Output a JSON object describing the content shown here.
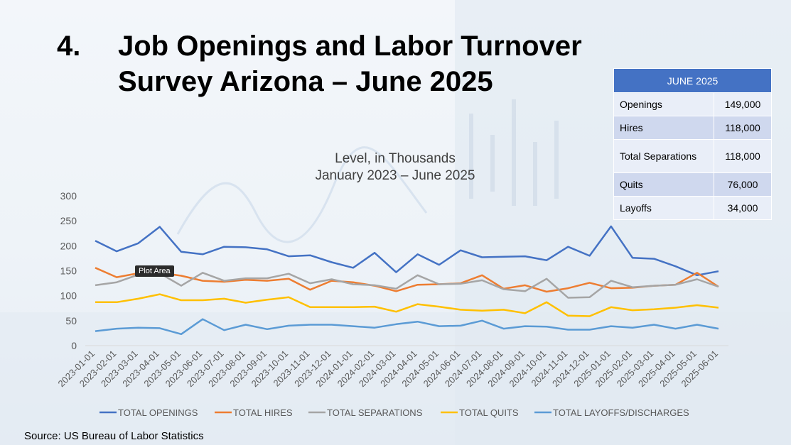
{
  "title": {
    "number": "4.",
    "text": "Job Openings and Labor Turnover\nSurvey Arizona – June 2025"
  },
  "summary_table": {
    "header": "JUNE 2025",
    "rows": [
      {
        "label": "Openings",
        "value": "149,000"
      },
      {
        "label": "Hires",
        "value": "118,000"
      },
      {
        "label": "Total Separations",
        "value": "118,000"
      },
      {
        "label": "Quits",
        "value": "76,000"
      },
      {
        "label": "Layoffs",
        "value": "34,000"
      }
    ]
  },
  "tooltip": "Plot Area",
  "source": "Source: US Bureau of Labor Statistics",
  "chart_data": {
    "type": "line",
    "title": "Level, in Thousands",
    "subtitle": "January 2023 – June 2025",
    "xlabel": "",
    "ylabel": "",
    "ylim": [
      0,
      300
    ],
    "yticks": [
      0,
      50,
      100,
      150,
      200,
      250,
      300
    ],
    "grid": false,
    "legend_position": "bottom",
    "categories": [
      "2023-01-01",
      "2023-02-01",
      "2023-03-01",
      "2023-04-01",
      "2023-05-01",
      "2023-06-01",
      "2023-07-01",
      "2023-08-01",
      "2023-09-01",
      "2023-10-01",
      "2023-11-01",
      "2023-12-01",
      "2024-01-01",
      "2024-02-01",
      "2024-03-01",
      "2024-04-01",
      "2024-05-01",
      "2024-06-01",
      "2024-07-01",
      "2024-08-01",
      "2024-09-01",
      "2024-10-01",
      "2024-11-01",
      "2024-12-01",
      "2025-01-01",
      "2025-02-01",
      "2025-03-01",
      "2025-04-01",
      "2025-05-01",
      "2025-06-01"
    ],
    "series": [
      {
        "name": "TOTAL OPENINGS",
        "color": "#4472c4",
        "values": [
          210,
          189,
          205,
          238,
          188,
          183,
          198,
          197,
          193,
          179,
          181,
          167,
          156,
          186,
          147,
          183,
          162,
          191,
          177,
          178,
          179,
          171,
          198,
          180,
          239,
          176,
          174,
          159,
          141,
          149
        ]
      },
      {
        "name": "TOTAL HIRES",
        "color": "#ed7d31",
        "values": [
          156,
          137,
          145,
          146,
          140,
          130,
          128,
          132,
          130,
          134,
          112,
          130,
          127,
          120,
          109,
          122,
          123,
          125,
          141,
          114,
          121,
          108,
          115,
          126,
          115,
          116,
          120,
          122,
          146,
          118
        ]
      },
      {
        "name": "TOTAL SEPARATIONS",
        "color": "#a5a5a5",
        "values": [
          121,
          127,
          142,
          145,
          120,
          146,
          130,
          135,
          135,
          144,
          125,
          133,
          123,
          121,
          114,
          141,
          123,
          124,
          131,
          113,
          109,
          134,
          96,
          97,
          130,
          117,
          120,
          122,
          133,
          118
        ]
      },
      {
        "name": "TOTAL QUITS",
        "color": "#ffc000",
        "values": [
          87,
          87,
          94,
          103,
          91,
          91,
          94,
          86,
          92,
          97,
          77,
          77,
          77,
          78,
          68,
          83,
          78,
          72,
          70,
          72,
          65,
          87,
          60,
          59,
          77,
          71,
          73,
          76,
          81,
          76
        ]
      },
      {
        "name": "TOTAL LAYOFFS/DISCHARGES",
        "color": "#5b9bd5",
        "values": [
          29,
          34,
          36,
          35,
          23,
          53,
          31,
          42,
          33,
          40,
          42,
          42,
          39,
          36,
          43,
          48,
          39,
          40,
          50,
          34,
          39,
          38,
          32,
          32,
          39,
          36,
          42,
          34,
          42,
          34
        ]
      }
    ]
  }
}
